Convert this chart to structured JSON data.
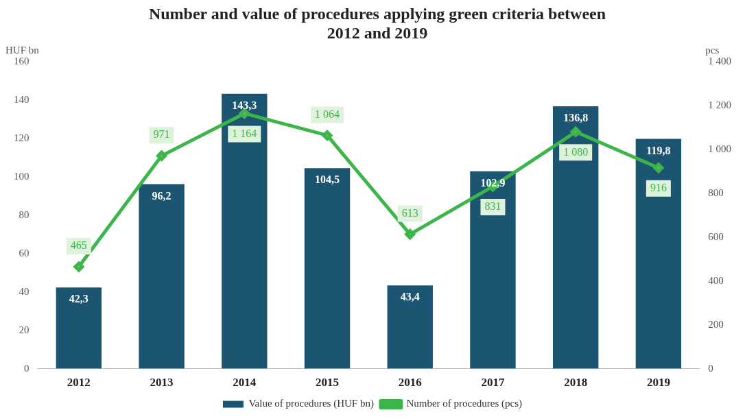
{
  "chart_data": {
    "type": "bar",
    "title": "Number and value of procedures applying green criteria between 2012 and 2019",
    "ylabel": "HUF bn",
    "y2label": "pcs",
    "categories": [
      "2012",
      "2013",
      "2014",
      "2015",
      "2016",
      "2017",
      "2018",
      "2019"
    ],
    "series": [
      {
        "name": "Value of procedures (HUF bn)",
        "color": "#1b5572",
        "values": [
          42.3,
          96.2,
          143.3,
          104.5,
          43.4,
          102.9,
          136.8,
          119.8
        ],
        "value_labels": [
          "42,3",
          "96,2",
          "143,3",
          "104,5",
          "43,4",
          "102,9",
          "136,8",
          "119,8"
        ]
      },
      {
        "name": "Number of procedures (pcs)",
        "type": "line",
        "axis": "y2",
        "color": "#3cb54a",
        "marker": "diamond",
        "values": [
          465,
          971,
          1164,
          1064,
          613,
          831,
          1080,
          916
        ],
        "value_labels": [
          "465",
          "971",
          "1 164",
          "1 064",
          "613",
          "831",
          "1 080",
          "916"
        ]
      }
    ],
    "ylim": [
      0,
      160
    ],
    "yticks": [
      0,
      20,
      40,
      60,
      80,
      100,
      120,
      140,
      160
    ],
    "y2lim": [
      0,
      1400
    ],
    "y2ticks": [
      0,
      200,
      400,
      600,
      800,
      {
        "value": 1000,
        "label": "1 000"
      },
      {
        "value": 1200,
        "label": "1 200"
      },
      {
        "value": 1400,
        "label": "1 400"
      }
    ],
    "grid": false,
    "legend": "bottom"
  }
}
